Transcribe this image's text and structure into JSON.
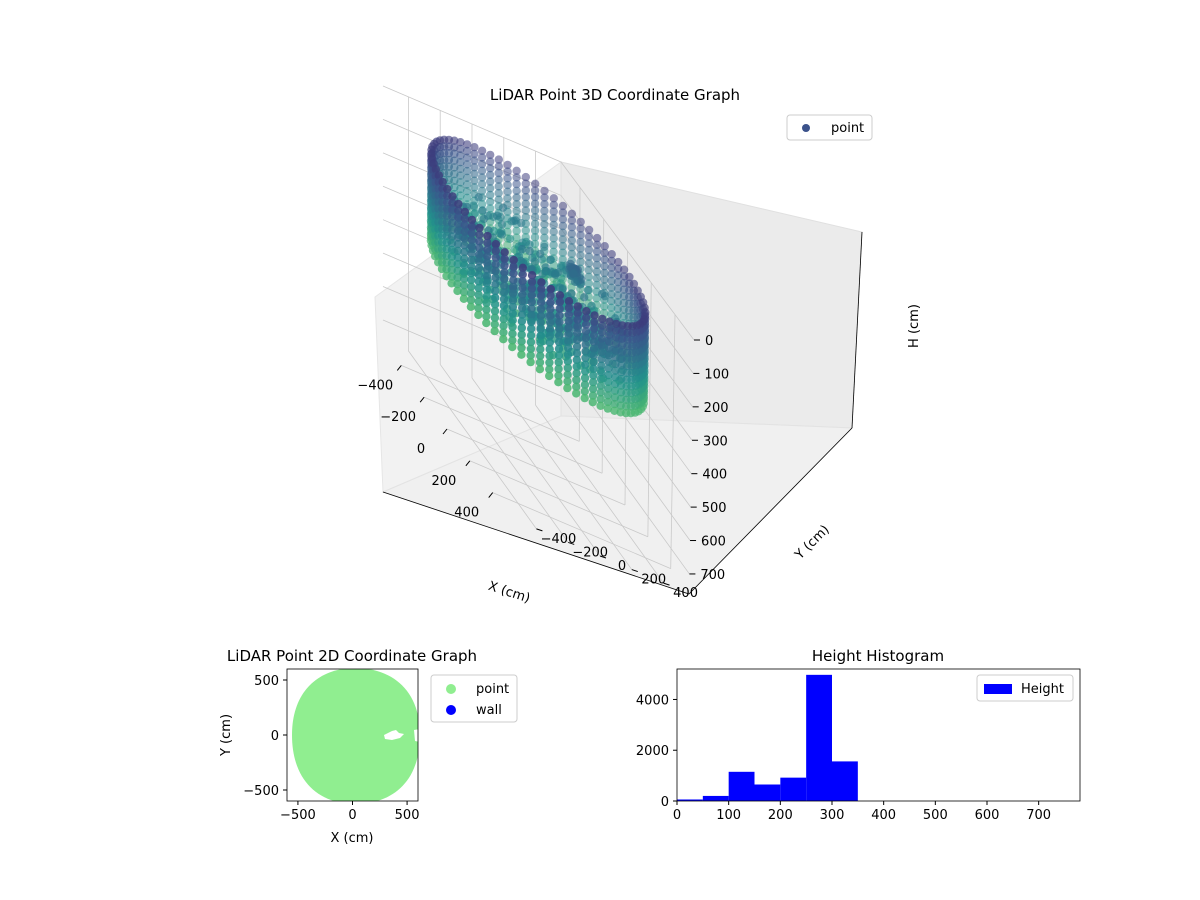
{
  "chart_data": [
    {
      "type": "scatter3d",
      "title": "LiDAR Point 3D Coordinate Graph",
      "xlabel": "X (cm)",
      "ylabel": "Y (cm)",
      "zlabel": "H (cm)",
      "xlim": [
        -560,
        560
      ],
      "ylim": [
        -560,
        560
      ],
      "zlim": [
        760,
        0
      ],
      "xticks": [
        "−400",
        "−200",
        "0",
        "200",
        "400"
      ],
      "yticks": [
        "−400",
        "−200",
        "0",
        "200",
        "400"
      ],
      "zticks": [
        "0",
        "100",
        "200",
        "300",
        "400",
        "500",
        "600",
        "700"
      ],
      "legend": [
        "point"
      ],
      "legend_position": "top-right",
      "colormap": "viridis",
      "ring": {
        "radius": 540,
        "h_top": 60,
        "h_bottom": 320
      },
      "grid": true
    },
    {
      "type": "scatter",
      "title": "LiDAR Point 2D Coordinate Graph",
      "xlabel": "X (cm)",
      "ylabel": "Y (cm)",
      "xlim": [
        -600,
        600
      ],
      "ylim": [
        -600,
        600
      ],
      "xticks": [
        "−500",
        "0",
        "500"
      ],
      "yticks": [
        "−500",
        "0",
        "500"
      ],
      "series": [
        {
          "name": "point",
          "color": "#90ee90"
        },
        {
          "name": "wall",
          "color": "#0000ff"
        }
      ],
      "legend_position": "outside-right"
    },
    {
      "type": "bar",
      "title": "Height Histogram",
      "series": [
        {
          "name": "Height",
          "color": "#0000ff"
        }
      ],
      "bins": [
        {
          "x0": 0,
          "x1": 50,
          "value": 60
        },
        {
          "x0": 50,
          "x1": 100,
          "value": 200
        },
        {
          "x0": 100,
          "x1": 150,
          "value": 1150
        },
        {
          "x0": 150,
          "x1": 200,
          "value": 650
        },
        {
          "x0": 200,
          "x1": 250,
          "value": 920
        },
        {
          "x0": 250,
          "x1": 300,
          "value": 4970
        },
        {
          "x0": 300,
          "x1": 350,
          "value": 1560
        }
      ],
      "xlim": [
        0,
        780
      ],
      "ylim": [
        0,
        5200
      ],
      "xticks": [
        "0",
        "100",
        "200",
        "300",
        "400",
        "500",
        "600",
        "700"
      ],
      "yticks": [
        "0",
        "2000",
        "4000"
      ],
      "legend_position": "top-right"
    }
  ]
}
